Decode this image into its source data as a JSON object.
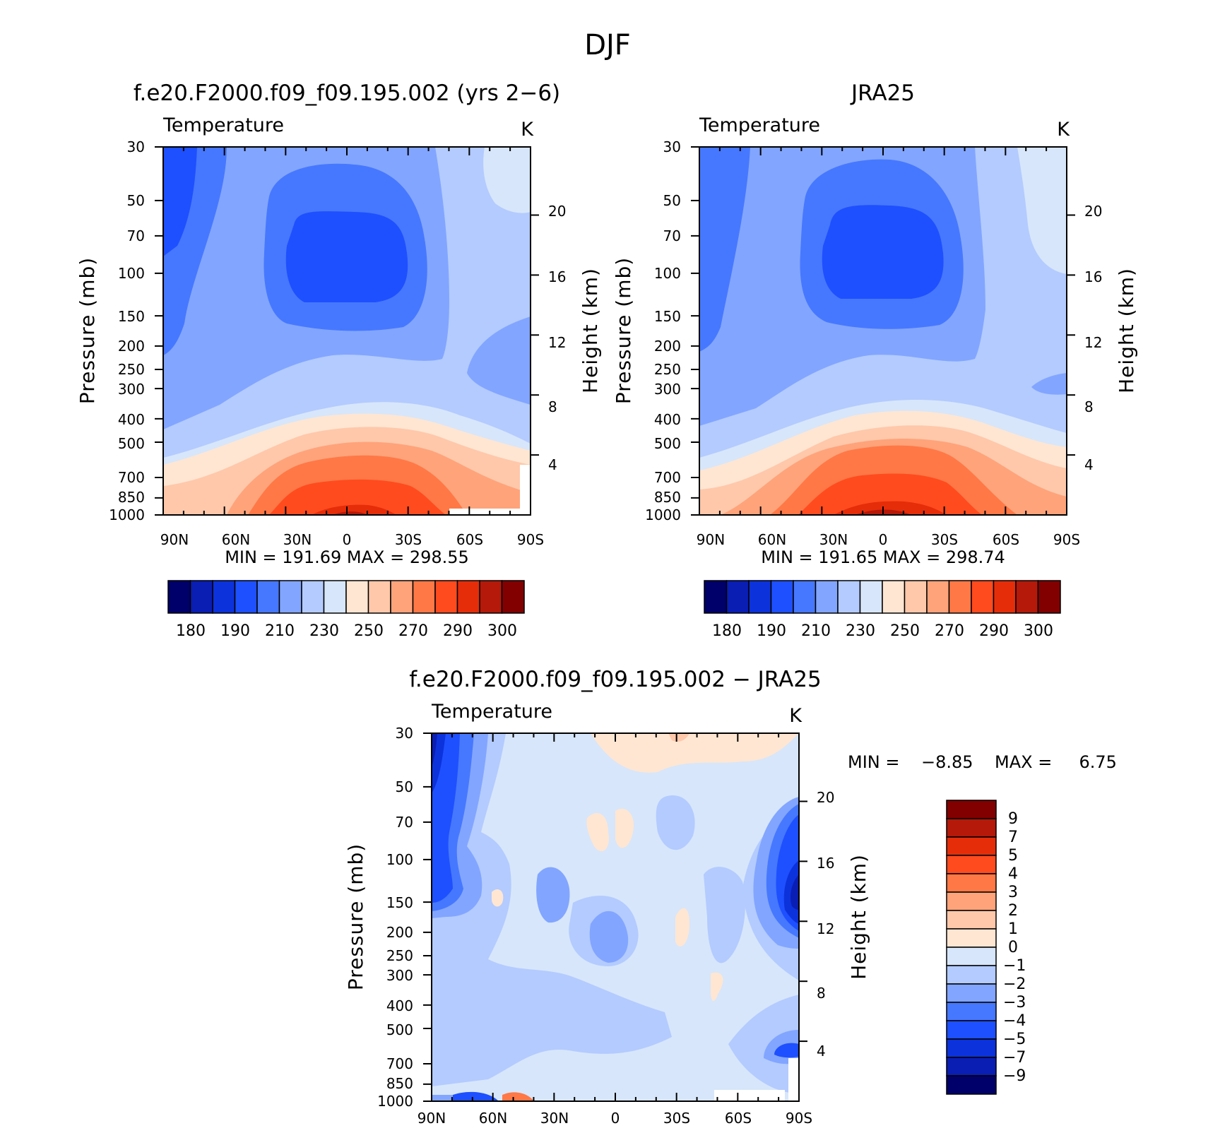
{
  "figure": {
    "title": "DJF"
  },
  "colormaps": {
    "abs": [
      "#00006a",
      "#0a1eb4",
      "#0c32dc",
      "#1e50ff",
      "#4678ff",
      "#82a5ff",
      "#b3cbff",
      "#d7e6fa",
      "#ffe6d2",
      "#ffc8aa",
      "#ffa37a",
      "#ff7846",
      "#ff4b1e",
      "#e52d0a",
      "#b4190a",
      "#820000"
    ],
    "diff": [
      "#00006a",
      "#0a1eb4",
      "#0c32dc",
      "#1e50ff",
      "#4678ff",
      "#82a5ff",
      "#b3cbff",
      "#d7e6fa",
      "#ffe6d2",
      "#ffc8aa",
      "#ffa37a",
      "#ff7846",
      "#ff4b1e",
      "#e52d0a",
      "#b4190a",
      "#820000"
    ]
  },
  "chart_data": [
    {
      "type": "heatmap",
      "title": "f.e20.F2000.f09_f09.195.002 (yrs 2−6)",
      "left_label": "Temperature",
      "right_label": "K",
      "ylabel": "Pressure (mb)",
      "ylabel_right": "Height (km)",
      "x_ticks": [
        "90N",
        "60N",
        "30N",
        "0",
        "30S",
        "60S",
        "90S"
      ],
      "y_ticks": [
        "30",
        "50",
        "70",
        "100",
        "150",
        "200",
        "250",
        "300",
        "400",
        "500",
        "700",
        "850",
        "1000"
      ],
      "y_ticks_right": [
        "20",
        "16",
        "12",
        "8",
        "4"
      ],
      "stats": "MIN =  191.69   MAX =  298.55",
      "colorbar_labels": [
        "180",
        "190",
        "210",
        "230",
        "250",
        "270",
        "290",
        "300"
      ],
      "levels": [
        180,
        185,
        190,
        200,
        210,
        220,
        230,
        240,
        250,
        260,
        270,
        280,
        290,
        295,
        300
      ],
      "min": 191.69,
      "max": 298.55
    },
    {
      "type": "heatmap",
      "title": "JRA25",
      "left_label": "Temperature",
      "right_label": "K",
      "ylabel": "Pressure (mb)",
      "ylabel_right": "Height (km)",
      "x_ticks": [
        "90N",
        "60N",
        "30N",
        "0",
        "30S",
        "60S",
        "90S"
      ],
      "y_ticks": [
        "30",
        "50",
        "70",
        "100",
        "150",
        "200",
        "250",
        "300",
        "400",
        "500",
        "700",
        "850",
        "1000"
      ],
      "y_ticks_right": [
        "20",
        "16",
        "12",
        "8",
        "4"
      ],
      "stats": "MIN =  191.65   MAX =  298.74",
      "colorbar_labels": [
        "180",
        "190",
        "210",
        "230",
        "250",
        "270",
        "290",
        "300"
      ],
      "levels": [
        180,
        185,
        190,
        200,
        210,
        220,
        230,
        240,
        250,
        260,
        270,
        280,
        290,
        295,
        300
      ],
      "min": 191.65,
      "max": 298.74
    },
    {
      "type": "heatmap",
      "title": "f.e20.F2000.f09_f09.195.002 − JRA25",
      "left_label": "Temperature",
      "right_label": "K",
      "ylabel": "Pressure (mb)",
      "ylabel_right": "Height (km)",
      "x_ticks": [
        "90N",
        "60N",
        "30N",
        "0",
        "30S",
        "60S",
        "90S"
      ],
      "y_ticks": [
        "30",
        "50",
        "70",
        "100",
        "150",
        "200",
        "250",
        "300",
        "400",
        "500",
        "700",
        "850",
        "1000"
      ],
      "y_ticks_right": [
        "20",
        "16",
        "12",
        "8",
        "4"
      ],
      "stats": "MIN =    −8.85    MAX =     6.75",
      "colorbar_labels": [
        "9",
        "7",
        "5",
        "4",
        "3",
        "2",
        "1",
        "0",
        "−1",
        "−2",
        "−3",
        "−4",
        "−5",
        "−7",
        "−9"
      ],
      "levels": [
        -9,
        -7,
        -5,
        -4,
        -3,
        -2,
        -1,
        0,
        1,
        2,
        3,
        4,
        5,
        7,
        9
      ],
      "min": -8.85,
      "max": 6.75
    }
  ]
}
